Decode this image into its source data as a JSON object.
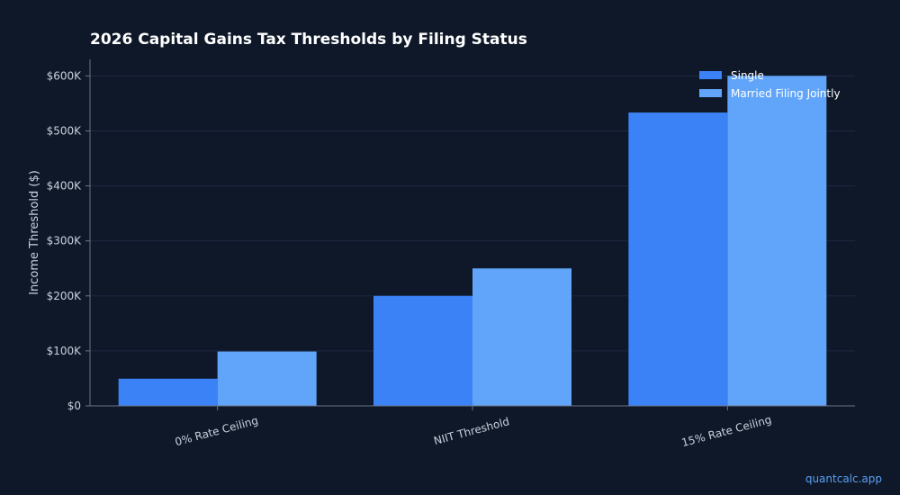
{
  "watermark": "quantcalc.app",
  "colors": {
    "background": "#0f1829",
    "grid": "#1c2942",
    "axis": "#6b7588",
    "series_single": "#3b82f6",
    "series_mfj": "#60a5fa"
  },
  "chart_data": {
    "type": "bar",
    "title": "2026 Capital Gains Tax Thresholds by Filing Status",
    "xlabel": "",
    "ylabel": "Income Threshold ($)",
    "categories": [
      "0% Rate Ceiling",
      "NIIT Threshold",
      "15% Rate Ceiling"
    ],
    "series": [
      {
        "name": "Single",
        "values": [
          49450,
          200000,
          533400
        ]
      },
      {
        "name": "Married Filing Jointly",
        "values": [
          98900,
          250000,
          600050
        ]
      }
    ],
    "ylim": [
      0,
      630000
    ],
    "yticks": [
      0,
      100000,
      200000,
      300000,
      400000,
      500000,
      600000
    ],
    "ytick_labels": [
      "$0",
      "$100K",
      "$200K",
      "$300K",
      "$400K",
      "$500K",
      "$600K"
    ],
    "grid": true,
    "legend_position": "top-right"
  }
}
